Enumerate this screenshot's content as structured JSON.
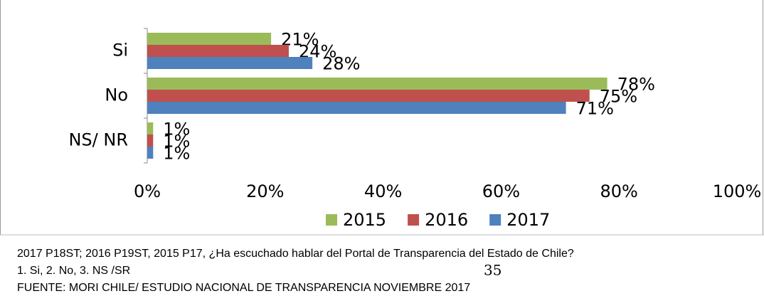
{
  "chart_data": {
    "type": "bar",
    "orientation": "horizontal",
    "categories": [
      "Si",
      "No",
      "NS/ NR"
    ],
    "series": [
      {
        "name": "2015",
        "color": "#9bbb59",
        "values": [
          21,
          78,
          1
        ],
        "value_labels": [
          "21%",
          "78%",
          "1%"
        ]
      },
      {
        "name": "2016",
        "color": "#c0504d",
        "values": [
          24,
          75,
          1
        ],
        "value_labels": [
          "24%",
          "75%",
          "1%"
        ]
      },
      {
        "name": "2017",
        "color": "#4f81bd",
        "values": [
          28,
          71,
          1
        ],
        "value_labels": [
          "28%",
          "71%",
          "1%"
        ]
      }
    ],
    "xlim": [
      0,
      100
    ],
    "xticks": [
      {
        "value": 0,
        "label": "0%"
      },
      {
        "value": 20,
        "label": "20%"
      },
      {
        "value": 40,
        "label": "40%"
      },
      {
        "value": 60,
        "label": "60%"
      },
      {
        "value": 80,
        "label": "80%"
      },
      {
        "value": 100,
        "label": "100%"
      }
    ],
    "legend": "bottom"
  },
  "footer": {
    "lines": [
      "2017 P18ST; 2016 P19ST, 2015 P17, ¿Ha escuchado hablar del Portal de Transparencia del Estado de Chile?",
      "1. Si, 2. No, 3. NS /SR",
      "FUENTE: MORI CHILE/ ESTUDIO NACIONAL DE TRANSPARENCIA NOVIEMBRE 2017"
    ],
    "page_number": "35"
  }
}
